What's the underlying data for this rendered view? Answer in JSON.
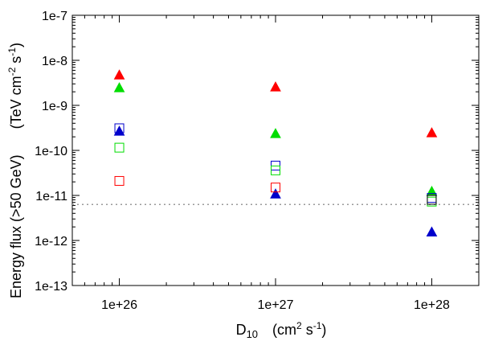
{
  "chart_data": {
    "type": "scatter",
    "x_scale": "log",
    "y_scale": "log",
    "xlim": [
      5e+25,
      2e+28
    ],
    "ylim": [
      1e-13,
      1e-07
    ],
    "x_tick_values": [
      1e+26,
      1e+27,
      1e+28
    ],
    "x_tick_labels": [
      "1e+26",
      "1e+27",
      "1e+28"
    ],
    "y_tick_values": [
      1e-13,
      1e-12,
      1e-11,
      1e-10,
      1e-09,
      1e-08,
      1e-07
    ],
    "y_tick_labels": [
      "1e-13",
      "1e-12",
      "1e-11",
      "1e-10",
      "1e-9",
      "1e-8",
      "1e-7"
    ],
    "xlabel": {
      "main": "D",
      "sub": "10",
      "unit_open": "(cm",
      "unit_sup1": "2",
      "unit_mid": " s",
      "unit_sup2": "-1",
      "unit_close": ")"
    },
    "ylabel": {
      "main": "Energy flux (>50 GeV)",
      "unit_open": "(TeV cm",
      "unit_sup1": "-2",
      "unit_mid": " s",
      "unit_sup2": "-1",
      "unit_close": ")"
    },
    "grid": false,
    "threshold_line": {
      "y": 6.3e-12,
      "color": "#999999",
      "style": "dotted"
    },
    "series": [
      {
        "marker": "triangle",
        "filled": true,
        "color": "#ff0000",
        "points": [
          [
            1e+26,
            4.6e-09
          ],
          [
            1e+27,
            2.5e-09
          ],
          [
            1e+28,
            2.4e-10
          ]
        ]
      },
      {
        "marker": "triangle",
        "filled": true,
        "color": "#00dd00",
        "points": [
          [
            1e+26,
            2.4e-09
          ],
          [
            1e+27,
            2.3e-10
          ],
          [
            1e+28,
            1.2e-11
          ]
        ]
      },
      {
        "marker": "triangle",
        "filled": true,
        "color": "#0000cc",
        "points": [
          [
            1e+26,
            2.6e-10
          ],
          [
            1e+27,
            1.05e-11
          ],
          [
            1e+28,
            1.5e-12
          ]
        ]
      },
      {
        "marker": "square",
        "filled": false,
        "color": "#0000cc",
        "points": [
          [
            1e+26,
            3.1e-10
          ],
          [
            1e+27,
            4.6e-11
          ],
          [
            1e+28,
            8.8e-12
          ]
        ]
      },
      {
        "marker": "square",
        "filled": false,
        "color": "#00dd00",
        "points": [
          [
            1e+26,
            1.15e-10
          ],
          [
            1e+27,
            3.6e-11
          ],
          [
            1e+28,
            7.3e-12
          ]
        ]
      },
      {
        "marker": "square",
        "filled": false,
        "color": "#ff0000",
        "points": [
          [
            1e+26,
            2.1e-11
          ],
          [
            1e+27,
            1.5e-11
          ]
        ]
      },
      {
        "marker": "square",
        "filled": false,
        "color": "#000000",
        "points": [
          [
            1e+28,
            8e-12
          ]
        ]
      }
    ]
  }
}
